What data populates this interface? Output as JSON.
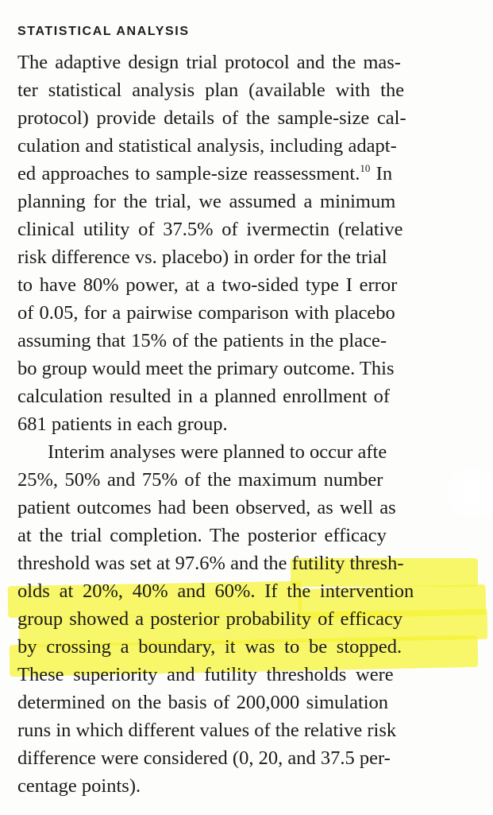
{
  "heading": "STATISTICAL ANALYSIS",
  "lines": [
    "The adaptive design trial protocol and the mas-",
    "ter statistical analysis plan (available with the",
    "protocol) provide details of the sample-size cal-",
    "culation and statistical analysis, including adapt-",
    "ed approaches to sample-size reassessment.",
    "planning for the trial, we assumed a minimum",
    "clinical utility of 37.5% of ivermectin (relative",
    "risk difference vs. placebo) in order for the trial",
    "to have 80% power, at a two-sided type I error",
    "of 0.05, for a pairwise comparison with placebo",
    "assuming that 15% of the patients in the place-",
    "bo group would meet the primary outcome. This",
    "calculation resulted in a planned enrollment of",
    "681 patients in each group.",
    "Interim analyses were planned to occur afte",
    "25%, 50% and 75% of the maximum number",
    "patient outcomes had been observed, as well as",
    "at the trial completion. The posterior efficacy",
    "threshold was set at 97.6% and the futility thresh-",
    "olds at 20%, 40% and 60%. If the intervention",
    "group showed a posterior probability of efficacy",
    "by crossing a boundary, it was to be stopped.",
    "These superiority and futility thresholds were",
    "determined on the basis of 200,000 simulation",
    "runs in which different values of the relative risk",
    "difference were considered (0, 20, and 37.5 per-",
    "centage points)."
  ],
  "reference": "10",
  "line5_tail": " In",
  "highlight_color": "#f5f230",
  "text_color": "#1a1a1a"
}
